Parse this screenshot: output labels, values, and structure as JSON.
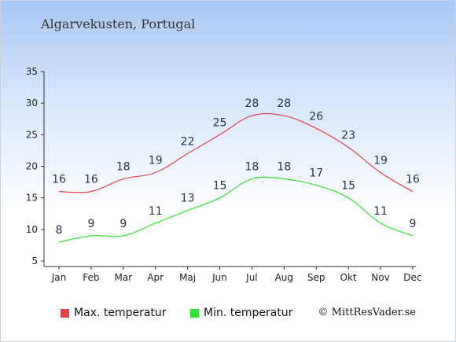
{
  "title": "Algarvekusten, Portugal",
  "credit": "© MittResVader.se",
  "chart_data": {
    "type": "line",
    "categories": [
      "Jan",
      "Feb",
      "Mar",
      "Apr",
      "Maj",
      "Jun",
      "Jul",
      "Aug",
      "Sep",
      "Okt",
      "Nov",
      "Dec"
    ],
    "series": [
      {
        "name": "Max. temperatur",
        "color": "#e8424a",
        "values": [
          16,
          16,
          18,
          19,
          22,
          25,
          28,
          28,
          26,
          23,
          19,
          16
        ]
      },
      {
        "name": "Min. temperatur",
        "color": "#33e633",
        "values": [
          8,
          9,
          9,
          11,
          13,
          15,
          18,
          18,
          17,
          15,
          11,
          9
        ]
      }
    ],
    "ylim": [
      5,
      35
    ],
    "yticks": [
      5,
      10,
      15,
      20,
      25,
      30,
      35
    ],
    "grid": false,
    "legend_position": "bottom"
  }
}
